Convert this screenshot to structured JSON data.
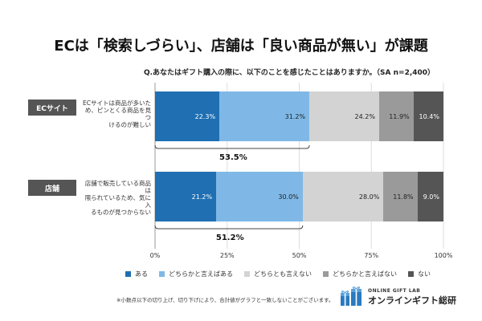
{
  "chart_data": {
    "type": "bar",
    "orientation": "horizontal",
    "stacked": true,
    "title": "ECは「検索しづらい」、店舗は「良い商品が無い」が課題",
    "subtitle": "Q.あなたはギフト購入の際に、以下のことを感じたことはありますか。（SA n=2,400）",
    "categories": [
      {
        "badge": "ECサイト",
        "description": [
          "ECサイトは商品が多いた",
          "め、ピンとくる商品を見つ",
          "けるのが難しい"
        ]
      },
      {
        "badge": "店舗",
        "description": [
          "店舗で販売している商品は",
          "限られているため、気に入",
          "るものが見つからない"
        ]
      }
    ],
    "series": [
      {
        "name": "ある",
        "color": "#1f6fb2",
        "text_color": "#ffffff",
        "values": [
          22.3,
          21.2
        ],
        "labels": [
          "22.3%",
          "21.2%"
        ]
      },
      {
        "name": "どちらかと言えばある",
        "color": "#7fb8e6",
        "text_color": "#222222",
        "values": [
          31.2,
          30.0
        ],
        "labels": [
          "31.2%",
          "30.0%"
        ]
      },
      {
        "name": "どちらとも言えない",
        "color": "#d3d3d3",
        "text_color": "#222222",
        "values": [
          24.2,
          28.0
        ],
        "labels": [
          "24.2%",
          "28.0%"
        ]
      },
      {
        "name": "どちらかと言えばない",
        "color": "#9a9a9a",
        "text_color": "#222222",
        "values": [
          11.9,
          11.8
        ],
        "labels": [
          "11.9%",
          "11.8%"
        ]
      },
      {
        "name": "ない",
        "color": "#555555",
        "text_color": "#ffffff",
        "values": [
          10.4,
          9.0
        ],
        "labels": [
          "10.4%",
          "9.0%"
        ]
      }
    ],
    "combined_labels": [
      "53.5%",
      "51.2%"
    ],
    "xlim": [
      0,
      100
    ],
    "x_ticks": [
      "0%",
      "25%",
      "50%",
      "75%",
      "100%"
    ],
    "grid": true,
    "legend_position": "bottom"
  },
  "footnote": "※小数点以下の切り上げ、切り下げにより、合計値がグラフと一致しないことがございます。",
  "brand": {
    "top": "ONLINE GIFT LAB",
    "main": "オンラインギフト総研",
    "logo_icon": "gift-boxes-icon"
  }
}
